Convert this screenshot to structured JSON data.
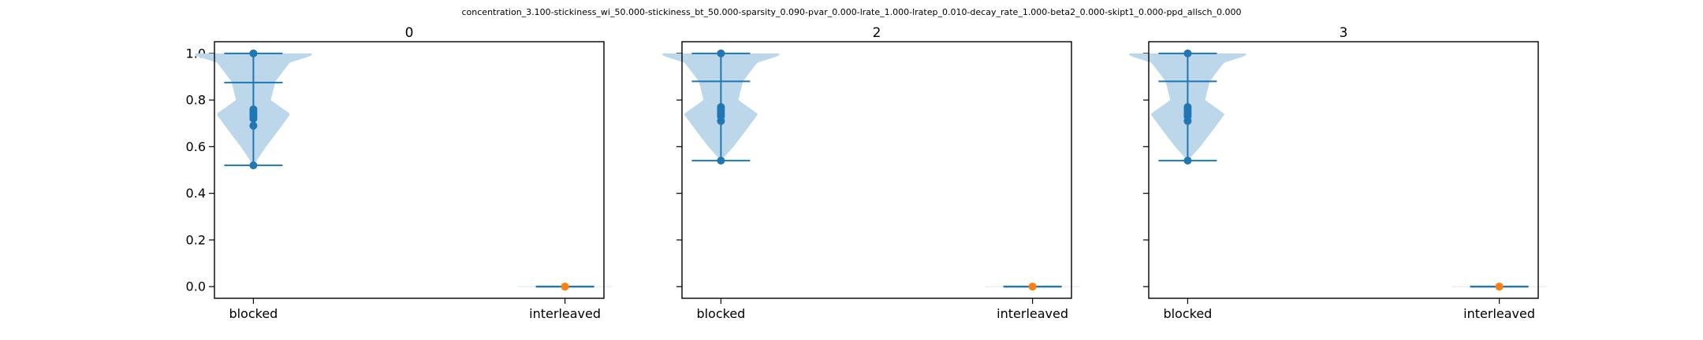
{
  "figure": {
    "suptitle": "concentration_3.100-stickiness_wi_50.000-stickiness_bt_50.000-sparsity_0.090-pvar_0.000-lrate_1.000-lratep_0.010-decay_rate_1.000-beta2_0.000-skipt1_0.000-ppd_allsch_0.000"
  },
  "colors": {
    "violin_fill": "#bcd6ea",
    "blocked": "#1f77b4",
    "interleaved": "#ff7f0e",
    "axes": "#000000"
  },
  "chart_data": [
    {
      "type": "violin",
      "title": "0",
      "categories": [
        "blocked",
        "interleaved"
      ],
      "ylim": [
        -0.05,
        1.05
      ],
      "yticks": [
        "0.0",
        "0.2",
        "0.4",
        "0.6",
        "0.8",
        "1.0"
      ],
      "series": [
        {
          "category": "blocked",
          "min": 0.52,
          "max": 1.0,
          "mean": 0.875,
          "points": [
            1.0,
            0.76,
            0.75,
            0.74,
            0.73,
            0.72,
            0.69,
            0.52
          ]
        },
        {
          "category": "interleaved",
          "min": 0.0,
          "max": 0.0,
          "mean": 0.0,
          "points": [
            0.0
          ]
        }
      ]
    },
    {
      "type": "violin",
      "title": "2",
      "categories": [
        "blocked",
        "interleaved"
      ],
      "ylim": [
        -0.05,
        1.05
      ],
      "yticks": [
        "0.0",
        "0.2",
        "0.4",
        "0.6",
        "0.8",
        "1.0"
      ],
      "series": [
        {
          "category": "blocked",
          "min": 0.54,
          "max": 1.0,
          "mean": 0.88,
          "points": [
            1.0,
            0.77,
            0.76,
            0.75,
            0.74,
            0.73,
            0.71,
            0.54
          ]
        },
        {
          "category": "interleaved",
          "min": 0.0,
          "max": 0.0,
          "mean": 0.0,
          "points": [
            0.0
          ]
        }
      ]
    },
    {
      "type": "violin",
      "title": "3",
      "categories": [
        "blocked",
        "interleaved"
      ],
      "ylim": [
        -0.05,
        1.05
      ],
      "yticks": [
        "0.0",
        "0.2",
        "0.4",
        "0.6",
        "0.8",
        "1.0"
      ],
      "series": [
        {
          "category": "blocked",
          "min": 0.54,
          "max": 1.0,
          "mean": 0.88,
          "points": [
            1.0,
            0.77,
            0.76,
            0.75,
            0.74,
            0.73,
            0.71,
            0.54
          ]
        },
        {
          "category": "interleaved",
          "min": 0.0,
          "max": 0.0,
          "mean": 0.0,
          "points": [
            0.0
          ]
        }
      ]
    }
  ]
}
